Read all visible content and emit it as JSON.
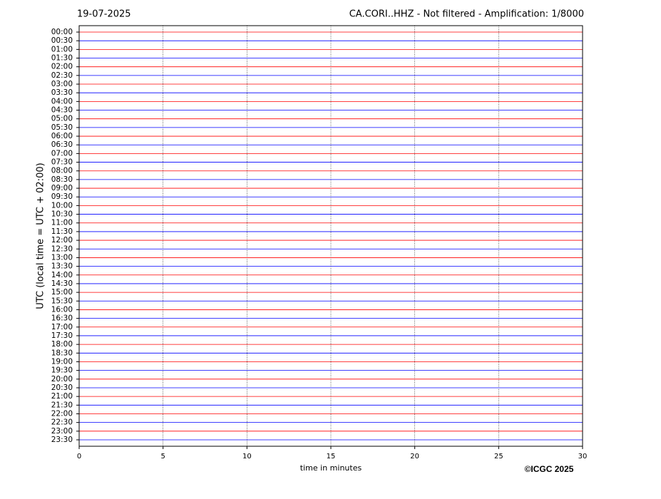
{
  "chart_data": {
    "type": "helicorder",
    "date": "19-07-2025",
    "title": "CA.CORI..HHZ - Not filtered - Amplification: 1/8000",
    "ylabel": "UTC (local time = UTC + 02:00)",
    "xlabel": "time in minutes",
    "credit": "©ICGC 2025",
    "categories": [
      "00:00",
      "00:30",
      "01:00",
      "01:30",
      "02:00",
      "02:30",
      "03:00",
      "03:30",
      "04:00",
      "04:30",
      "05:00",
      "05:30",
      "06:00",
      "06:30",
      "07:00",
      "07:30",
      "08:00",
      "08:30",
      "09:00",
      "09:30",
      "10:00",
      "10:30",
      "11:00",
      "11:30",
      "12:00",
      "12:30",
      "13:00",
      "13:30",
      "14:00",
      "14:30",
      "15:00",
      "15:30",
      "16:00",
      "16:30",
      "17:00",
      "17:30",
      "18:00",
      "18:30",
      "19:00",
      "19:30",
      "20:00",
      "20:30",
      "21:00",
      "21:30",
      "22:00",
      "22:30",
      "23:00",
      "23:30"
    ],
    "colors": [
      "#ff0000",
      "#0000ff"
    ],
    "xlim": [
      0,
      30
    ],
    "xticks": [
      0,
      5,
      10,
      15,
      20,
      25,
      30
    ],
    "grid": true
  }
}
